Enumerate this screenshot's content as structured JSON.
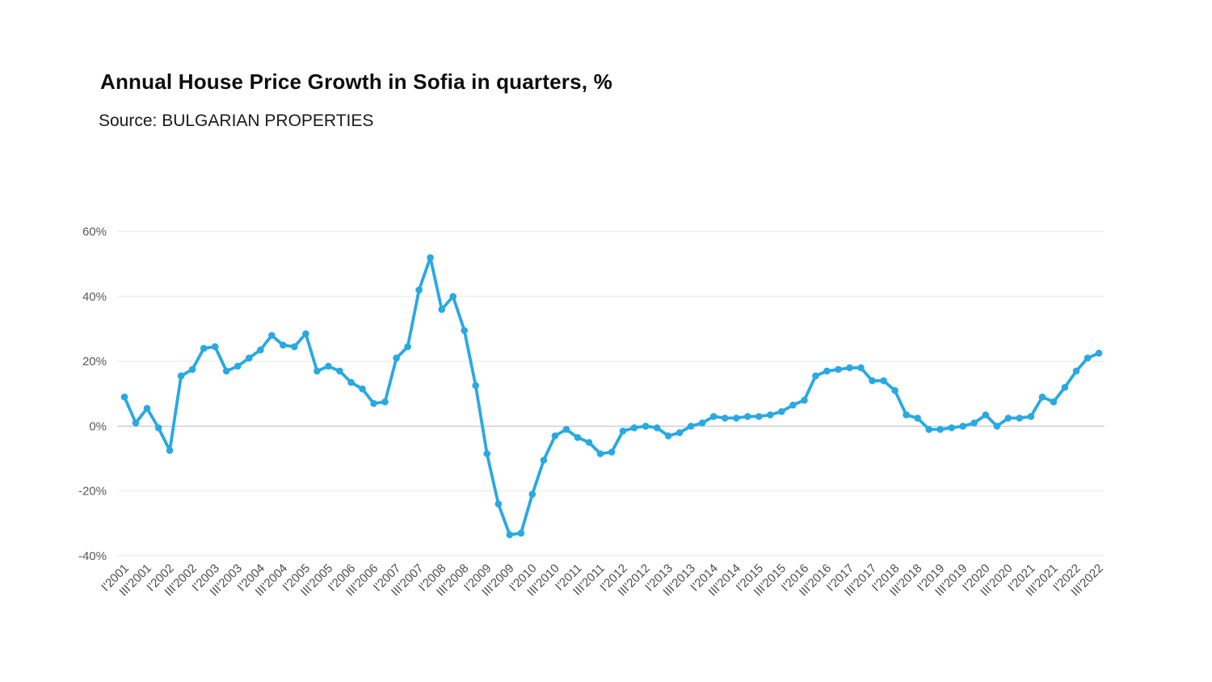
{
  "title": "Annual House Price Growth in Sofia in quarters, %",
  "subtitle": "Source: BULGARIAN PROPERTIES",
  "colors": {
    "line": "#29a9e1",
    "marker": "#29a9e1",
    "grid": "#e8e8e8",
    "zero_line": "#bdbdbd",
    "axis_text": "#595959",
    "background": "#ffffff"
  },
  "chart_data": {
    "type": "line",
    "title": "Annual House Price Growth in Sofia in quarters, %",
    "subtitle": "Source: BULGARIAN PROPERTIES",
    "legend": "none",
    "grid": "horizontal",
    "ylim": [
      -45,
      65
    ],
    "y_ticks": [
      {
        "value": 60,
        "label": "60%"
      },
      {
        "value": 40,
        "label": "40%"
      },
      {
        "value": 20,
        "label": "20%"
      },
      {
        "value": 0,
        "label": "0%"
      },
      {
        "value": -20,
        "label": "-20%"
      },
      {
        "value": -40,
        "label": "-40%"
      }
    ],
    "x_tick_every": 2,
    "x": [
      "I'2001",
      "II'2001",
      "III'2001",
      "IV'2001",
      "I'2002",
      "II'2002",
      "III'2002",
      "IV'2002",
      "I'2003",
      "II'2003",
      "III'2003",
      "IV'2003",
      "I'2004",
      "II'2004",
      "III'2004",
      "IV'2004",
      "I'2005",
      "II'2005",
      "III'2005",
      "IV'2005",
      "I'2006",
      "II'2006",
      "III'2006",
      "IV'2006",
      "I'2007",
      "II'2007",
      "III'2007",
      "IV'2007",
      "I'2008",
      "II'2008",
      "III'2008",
      "IV'2008",
      "I'2009",
      "II'2009",
      "III'2009",
      "IV'2009",
      "I'2010",
      "II'2010",
      "III'2010",
      "IV'2010",
      "I'2011",
      "II'2011",
      "III'2011",
      "IV'2011",
      "I'2012",
      "II'2012",
      "III'2012",
      "IV'2012",
      "I'2013",
      "II'2013",
      "III'2013",
      "IV'2013",
      "I'2014",
      "II'2014",
      "III'2014",
      "IV'2014",
      "I'2015",
      "II'2015",
      "III'2015",
      "IV'2015",
      "I'2016",
      "II'2016",
      "III'2016",
      "IV'2016",
      "I'2017",
      "II'2017",
      "III'2017",
      "IV'2017",
      "I'2018",
      "II'2018",
      "III'2018",
      "IV'2018",
      "I'2019",
      "II'2019",
      "III'2019",
      "IV'2019",
      "I'2020",
      "II'2020",
      "III'2020",
      "IV'2020",
      "I'2021",
      "II'2021",
      "III'2021",
      "IV'2021",
      "I'2022",
      "II'2022",
      "III'2022"
    ],
    "values": [
      9,
      1,
      5.5,
      -0.5,
      -7.5,
      15.5,
      17.5,
      24,
      24.5,
      17,
      18.5,
      21,
      23.5,
      28,
      25,
      24.5,
      28.5,
      17,
      18.5,
      17,
      13.5,
      11.5,
      7,
      7.5,
      21,
      24.5,
      42,
      52,
      36,
      40,
      29.5,
      12.5,
      -8.5,
      -24,
      -33.5,
      -33,
      -21,
      -10.5,
      -3,
      -1,
      -3.5,
      -5,
      -8.5,
      -8,
      -1.5,
      -0.5,
      0,
      -0.5,
      -3,
      -2,
      0,
      1,
      3,
      2.5,
      2.5,
      3,
      3,
      3.5,
      4.5,
      6.5,
      8,
      15.5,
      17,
      17.5,
      18,
      18,
      14,
      14,
      11,
      3.5,
      2.5,
      -1,
      -1,
      -0.5,
      0,
      1,
      3.5,
      0,
      2.5,
      2.5,
      3,
      9,
      7.5,
      12,
      17,
      21,
      22.5
    ]
  }
}
